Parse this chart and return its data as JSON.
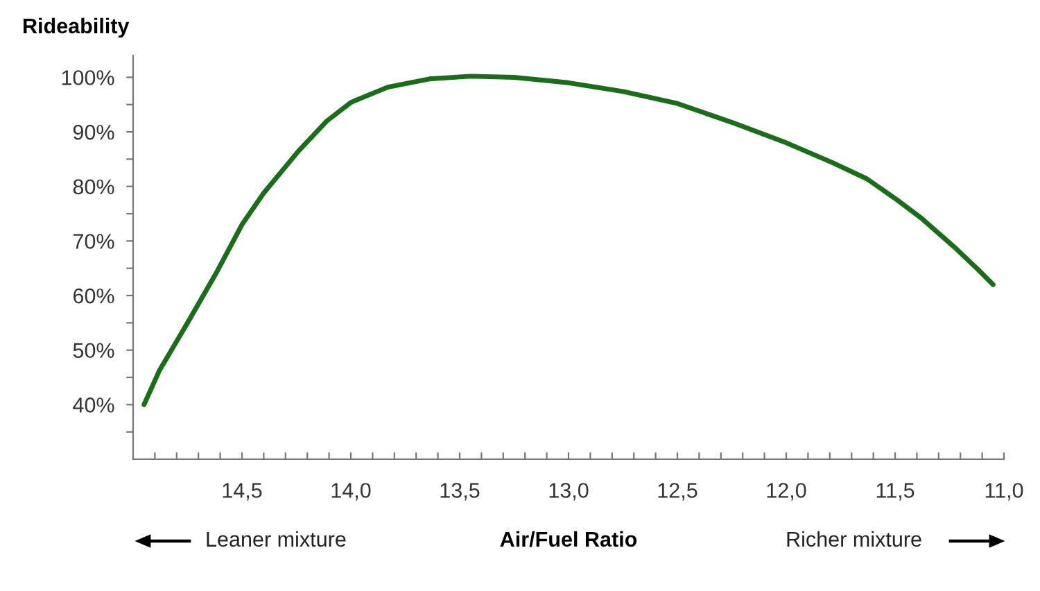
{
  "chart_data": {
    "type": "line",
    "ylabel": "Rideability",
    "xlabel": "Air/Fuel Ratio",
    "annotations": [
      "Leaner mixture",
      "Richer mixture"
    ],
    "x": [
      14.95,
      14.88,
      14.75,
      14.62,
      14.5,
      14.4,
      14.24,
      14.11,
      14.0,
      13.83,
      13.64,
      13.45,
      13.25,
      13.0,
      12.75,
      12.5,
      12.24,
      12.0,
      11.79,
      11.63,
      11.5,
      11.38,
      11.22,
      11.12,
      11.05
    ],
    "series": [
      {
        "color": "#1a6e1a",
        "values": [
          40,
          46.2,
          55,
          64,
          73,
          78.8,
          86.5,
          92,
          95.4,
          98.2,
          99.7,
          100.2,
          100,
          99,
          97.4,
          95.2,
          91.6,
          88,
          84.4,
          81.4,
          77.8,
          74.2,
          68.6,
          64.8,
          62
        ]
      }
    ],
    "xlim": [
      15.0,
      11.0
    ],
    "ylim": [
      30,
      104
    ],
    "xticks": [
      {
        "value": 14.9,
        "label": null
      },
      {
        "value": 14.8,
        "label": null
      },
      {
        "value": 14.7,
        "label": null
      },
      {
        "value": 14.6,
        "label": null
      },
      {
        "value": 14.5,
        "label": "14,5"
      },
      {
        "value": 14.4,
        "label": null
      },
      {
        "value": 14.3,
        "label": null
      },
      {
        "value": 14.2,
        "label": null
      },
      {
        "value": 14.1,
        "label": null
      },
      {
        "value": 14.0,
        "label": "14,0"
      },
      {
        "value": 13.9,
        "label": null
      },
      {
        "value": 13.8,
        "label": null
      },
      {
        "value": 13.7,
        "label": null
      },
      {
        "value": 13.6,
        "label": null
      },
      {
        "value": 13.5,
        "label": "13,5"
      },
      {
        "value": 13.4,
        "label": null
      },
      {
        "value": 13.3,
        "label": null
      },
      {
        "value": 13.2,
        "label": null
      },
      {
        "value": 13.1,
        "label": null
      },
      {
        "value": 13.0,
        "label": "13,0"
      },
      {
        "value": 12.9,
        "label": null
      },
      {
        "value": 12.8,
        "label": null
      },
      {
        "value": 12.7,
        "label": null
      },
      {
        "value": 12.6,
        "label": null
      },
      {
        "value": 12.5,
        "label": "12,5"
      },
      {
        "value": 12.4,
        "label": null
      },
      {
        "value": 12.3,
        "label": null
      },
      {
        "value": 12.2,
        "label": null
      },
      {
        "value": 12.1,
        "label": null
      },
      {
        "value": 12.0,
        "label": "12,0"
      },
      {
        "value": 11.9,
        "label": null
      },
      {
        "value": 11.8,
        "label": null
      },
      {
        "value": 11.7,
        "label": null
      },
      {
        "value": 11.6,
        "label": null
      },
      {
        "value": 11.5,
        "label": "11,5"
      },
      {
        "value": 11.4,
        "label": null
      },
      {
        "value": 11.3,
        "label": null
      },
      {
        "value": 11.2,
        "label": null
      },
      {
        "value": 11.1,
        "label": null
      },
      {
        "value": 11.0,
        "label": "11,0"
      }
    ],
    "yticks": [
      {
        "value": 35,
        "label": null
      },
      {
        "value": 40,
        "label": "40%"
      },
      {
        "value": 45,
        "label": null
      },
      {
        "value": 50,
        "label": "50%"
      },
      {
        "value": 55,
        "label": null
      },
      {
        "value": 60,
        "label": "60%"
      },
      {
        "value": 65,
        "label": null
      },
      {
        "value": 70,
        "label": "70%"
      },
      {
        "value": 75,
        "label": null
      },
      {
        "value": 80,
        "label": "80%"
      },
      {
        "value": 85,
        "label": null
      },
      {
        "value": 90,
        "label": "90%"
      },
      {
        "value": 95,
        "label": null
      },
      {
        "value": 100,
        "label": "100%"
      }
    ],
    "grid": false,
    "legend": false,
    "marker": "none",
    "line_style": "solid"
  }
}
